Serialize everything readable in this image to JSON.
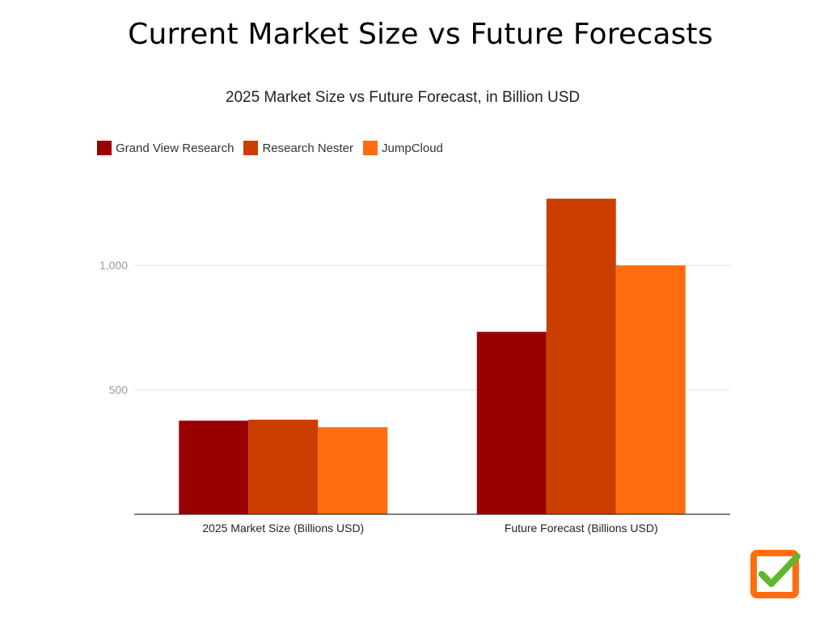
{
  "page": {
    "title": "Current Market Size vs Future Forecasts"
  },
  "chart_data": {
    "type": "bar",
    "title": "2025 Market Size vs Future Forecast, in Billion USD",
    "categories": [
      "2025 Market Size (Billions USD)",
      "Future Forecast (Billions USD)"
    ],
    "series": [
      {
        "name": "Grand View Research",
        "color": "#990000",
        "values": [
          376,
          733
        ]
      },
      {
        "name": "Research Nester",
        "color": "#cc3d00",
        "values": [
          380,
          1268
        ]
      },
      {
        "name": "JumpCloud",
        "color": "#ff6d0f",
        "values": [
          350,
          1000
        ]
      }
    ],
    "yticks": [
      {
        "value": 500,
        "label": "500"
      },
      {
        "value": 1000,
        "label": "1,000"
      }
    ],
    "ylim": [
      0,
      1300
    ],
    "xlabel": "",
    "ylabel": "",
    "grid": true,
    "legend_position": "top-left"
  },
  "logo": {
    "icon": "checkbox-check-icon",
    "box_color": "#ff6d0f",
    "check_color": "#5cb82e"
  }
}
